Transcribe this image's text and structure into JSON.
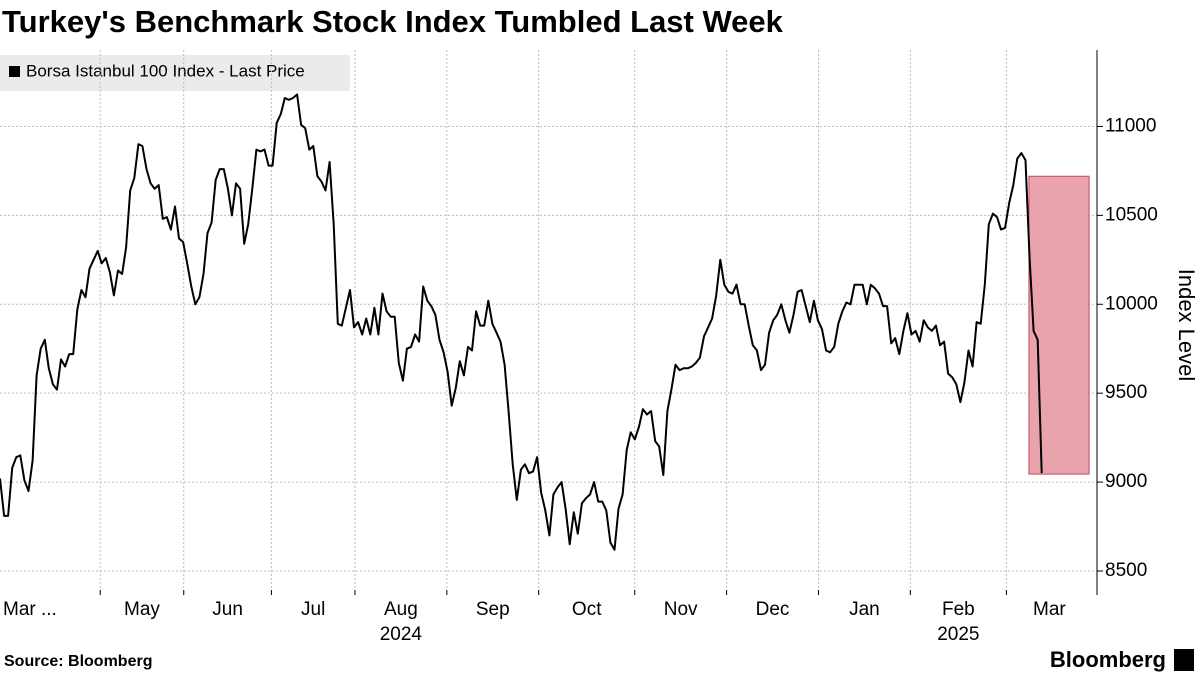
{
  "chart_data": {
    "type": "line",
    "title": "Turkey's Benchmark Stock Index Tumbled Last Week",
    "y_axis_label": "Index Level",
    "source": "Source: Bloomberg",
    "brand": "Bloomberg",
    "series": [
      {
        "name": "Borsa Istanbul 100 Index - Last Price",
        "color": "#000000",
        "values": [
          9020,
          8810,
          8810,
          9080,
          9140,
          9150,
          9010,
          8950,
          9120,
          9600,
          9750,
          9800,
          9640,
          9550,
          9520,
          9690,
          9650,
          9720,
          9720,
          9970,
          10080,
          10040,
          10200,
          10250,
          10300,
          10230,
          10260,
          10180,
          10050,
          10190,
          10170,
          10320,
          10640,
          10710,
          10900,
          10890,
          10760,
          10680,
          10650,
          10670,
          10480,
          10490,
          10420,
          10550,
          10370,
          10350,
          10230,
          10100,
          10000,
          10040,
          10170,
          10400,
          10460,
          10700,
          10760,
          10760,
          10650,
          10500,
          10680,
          10650,
          10340,
          10450,
          10650,
          10870,
          10860,
          10870,
          10780,
          10780,
          11020,
          11070,
          11160,
          11150,
          11160,
          11180,
          11010,
          10990,
          10870,
          10890,
          10720,
          10690,
          10640,
          10800,
          10450,
          9890,
          9880,
          9980,
          10080,
          9870,
          9900,
          9830,
          9920,
          9830,
          9980,
          9830,
          10060,
          9960,
          9930,
          9930,
          9670,
          9570,
          9750,
          9760,
          9830,
          9790,
          10100,
          10020,
          9990,
          9940,
          9800,
          9730,
          9620,
          9430,
          9530,
          9680,
          9600,
          9760,
          9740,
          9960,
          9880,
          9880,
          10020,
          9890,
          9840,
          9790,
          9660,
          9390,
          9100,
          8900,
          9070,
          9100,
          9050,
          9060,
          9140,
          8940,
          8840,
          8700,
          8930,
          8970,
          9000,
          8850,
          8650,
          8830,
          8710,
          8880,
          8910,
          8930,
          9000,
          8890,
          8890,
          8840,
          8660,
          8620,
          8850,
          8930,
          9180,
          9280,
          9240,
          9310,
          9410,
          9380,
          9400,
          9230,
          9200,
          9040,
          9400,
          9520,
          9660,
          9630,
          9640,
          9640,
          9650,
          9670,
          9700,
          9820,
          9870,
          9920,
          10050,
          10250,
          10110,
          10070,
          10060,
          10110,
          10000,
          10000,
          9880,
          9770,
          9740,
          9630,
          9660,
          9840,
          9910,
          9940,
          10000,
          9910,
          9840,
          9940,
          10070,
          10080,
          9990,
          9900,
          10020,
          9910,
          9860,
          9740,
          9730,
          9760,
          9890,
          9960,
          10010,
          10000,
          10110,
          10110,
          10110,
          10000,
          10110,
          10090,
          10060,
          9990,
          9990,
          9780,
          9810,
          9720,
          9850,
          9950,
          9830,
          9850,
          9790,
          9910,
          9870,
          9850,
          9880,
          9770,
          9790,
          9610,
          9590,
          9550,
          9450,
          9560,
          9740,
          9650,
          9900,
          9890,
          10110,
          10450,
          10510,
          10490,
          10420,
          10430,
          10570,
          10670,
          10820,
          10850,
          10810,
          10270,
          9850,
          9800,
          9050
        ]
      }
    ],
    "xlim": [
      0,
      262.7
    ],
    "xticks": [
      24,
      44,
      65,
      85,
      107,
      129,
      152,
      174,
      196,
      218,
      241
    ],
    "x_labels": [
      {
        "label": "Mar ..."
      },
      {
        "label": "May"
      },
      {
        "label": "Jun"
      },
      {
        "label": "Jul"
      },
      {
        "label": "Aug",
        "year": "2024"
      },
      {
        "label": "Sep"
      },
      {
        "label": "Oct"
      },
      {
        "label": "Nov"
      },
      {
        "label": "Dec"
      },
      {
        "label": "Jan"
      },
      {
        "label": "Feb",
        "year": "2025"
      },
      {
        "label": "Mar"
      }
    ],
    "ylim": [
      8365,
      11430
    ],
    "yticks": [
      8500,
      9000,
      9500,
      10000,
      10500,
      11000
    ],
    "grid": true,
    "highlight": {
      "xlim": [
        246.4,
        260.8
      ],
      "ylim": [
        9045,
        10720
      ],
      "color": "#e8a3ad"
    }
  }
}
